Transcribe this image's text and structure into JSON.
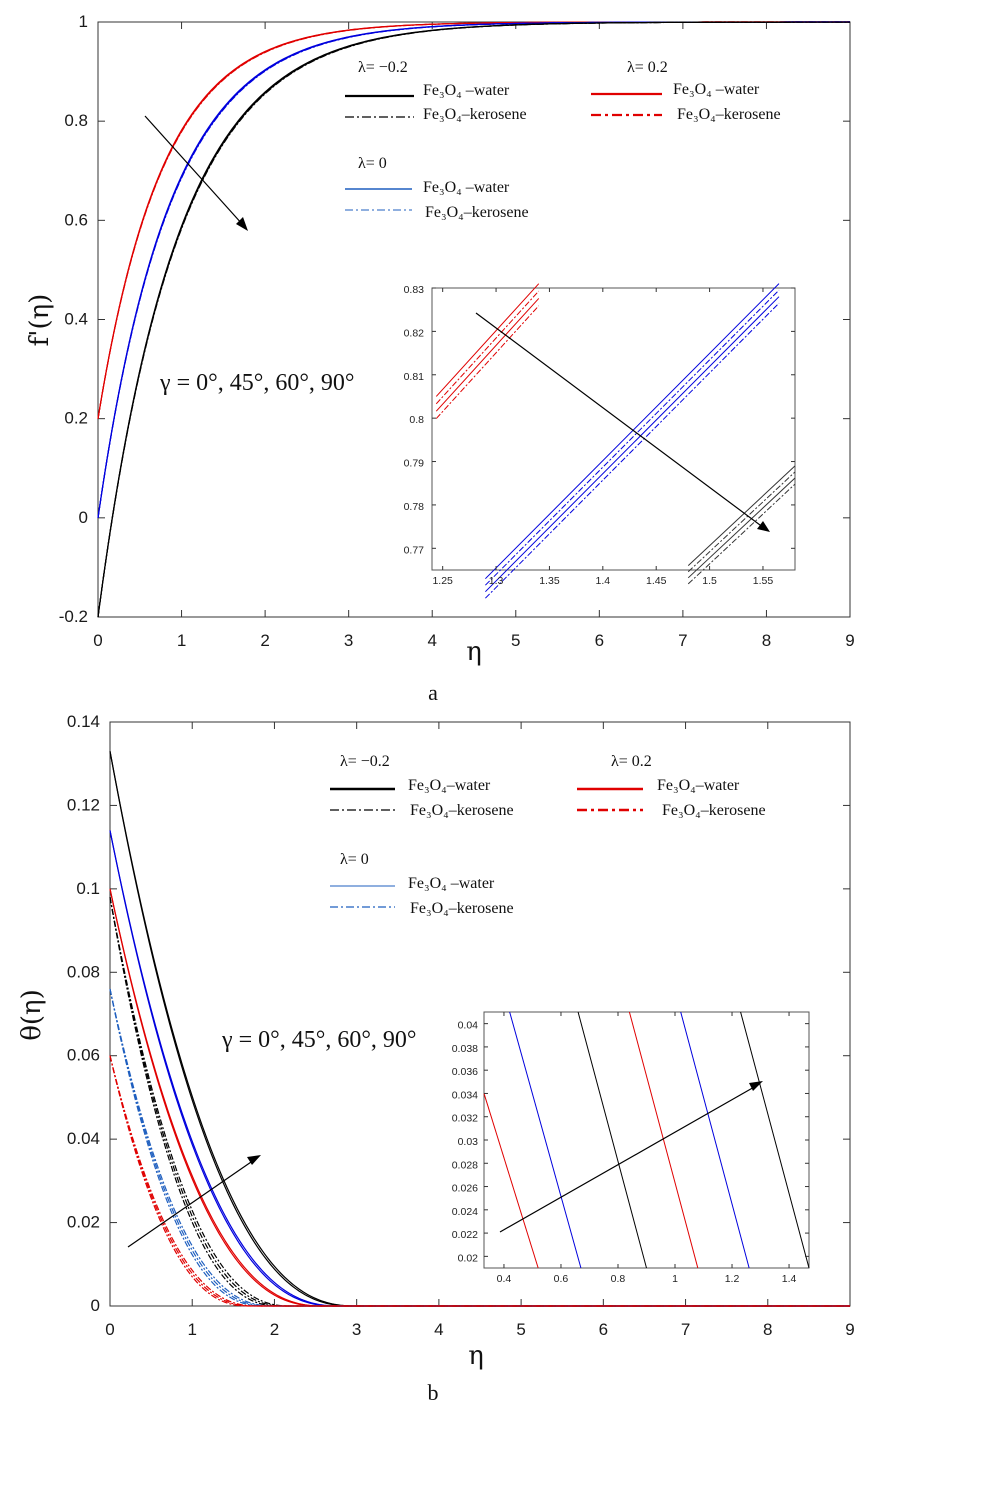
{
  "chart_data": [
    {
      "type": "line",
      "panel_label": "a",
      "xlabel": "η",
      "ylabel": "f'(η)",
      "xlim": [
        0,
        9
      ],
      "ylim": [
        -0.2,
        1
      ],
      "xticks": [
        "0",
        "1",
        "2",
        "3",
        "4",
        "5",
        "6",
        "7",
        "8",
        "9"
      ],
      "yticks": [
        "-0.2",
        "0",
        "0.2",
        "0.4",
        "0.6",
        "0.8",
        "1"
      ],
      "annotation": "γ = 0°, 45°, 60°, 90°",
      "legend": [
        {
          "heading": "λ= −0.2",
          "entries": [
            {
              "label": "Fe₃O₄ –water",
              "color": "#000000",
              "style": "solid"
            },
            {
              "label": "Fe₃O₄–kerosene",
              "color": "#000000",
              "style": "dashdot"
            }
          ]
        },
        {
          "heading": "λ= 0.2",
          "entries": [
            {
              "label": "Fe₃O₄ –water",
              "color": "#e00000",
              "style": "solid"
            },
            {
              "label": "Fe₃O₄–kerosene",
              "color": "#e00000",
              "style": "dashdot"
            }
          ]
        },
        {
          "heading": "λ= 0",
          "entries": [
            {
              "label": "Fe₃O₄ –water",
              "color": "#1f5fbf",
              "style": "solid"
            },
            {
              "label": "Fe₃O₄–kerosene",
              "color": "#1f5fbf",
              "style": "dashdot"
            }
          ]
        }
      ],
      "series": [
        {
          "group": "λ=0.2",
          "color": "#e00000",
          "start": 0.2,
          "rate": 1.3,
          "curves": 4
        },
        {
          "group": "λ=0",
          "color": "#0000dd",
          "start": 0.0,
          "rate": 1.17,
          "curves": 4
        },
        {
          "group": "λ=-0.2",
          "color": "#000000",
          "start": -0.2,
          "rate": 1.07,
          "curves": 4
        }
      ],
      "inset": {
        "xlim": [
          1.24,
          1.58
        ],
        "ylim": [
          0.765,
          0.83
        ],
        "xticks": [
          "1.25",
          "1.3",
          "1.35",
          "1.4",
          "1.45",
          "1.5",
          "1.55"
        ],
        "yticks": [
          "0.77",
          "0.78",
          "0.79",
          "0.8",
          "0.81",
          "0.82",
          "0.83"
        ]
      }
    },
    {
      "type": "line",
      "panel_label": "b",
      "xlabel": "η",
      "ylabel": "θ(η)",
      "xlim": [
        0,
        9
      ],
      "ylim": [
        0,
        0.14
      ],
      "xticks": [
        "0",
        "1",
        "2",
        "3",
        "4",
        "5",
        "6",
        "7",
        "8",
        "9"
      ],
      "yticks": [
        "0",
        "0.02",
        "0.04",
        "0.06",
        "0.08",
        "0.1",
        "0.12",
        "0.14"
      ],
      "annotation": "γ = 0°, 45°, 60°, 90°",
      "legend": [
        {
          "heading": "λ= −0.2",
          "entries": [
            {
              "label": "Fe₃O₄–water",
              "color": "#000000",
              "style": "solid"
            },
            {
              "label": "Fe₃O₄–kerosene",
              "color": "#000000",
              "style": "dashdot"
            }
          ]
        },
        {
          "heading": "λ= 0.2",
          "entries": [
            {
              "label": "Fe₃O₄–water",
              "color": "#e00000",
              "style": "solid"
            },
            {
              "label": "Fe₃O₄–kerosene",
              "color": "#e00000",
              "style": "dashdot"
            }
          ]
        },
        {
          "heading": "λ= 0",
          "entries": [
            {
              "label": "Fe₃O₄ –water",
              "color": "#1f5fbf",
              "style": "solid"
            },
            {
              "label": "Fe₃O₄–kerosene",
              "color": "#1f5fbf",
              "style": "dashdot"
            }
          ]
        }
      ],
      "series": [
        {
          "group": "λ=-0.2 water",
          "color": "#000000",
          "style": "solid",
          "start": 0.133,
          "end": 3.0
        },
        {
          "group": "λ=0 water",
          "color": "#0000dd",
          "style": "solid",
          "start": 0.114,
          "end": 2.8
        },
        {
          "group": "λ=0.2 water",
          "color": "#e00000",
          "style": "solid",
          "start": 0.1,
          "end": 2.6
        },
        {
          "group": "λ=-0.2 kerosene",
          "color": "#000000",
          "style": "dashdot",
          "start": 0.098,
          "end": 2.2
        },
        {
          "group": "λ=0 kerosene",
          "color": "#1f5fbf",
          "style": "dashdot",
          "start": 0.076,
          "end": 2.0
        },
        {
          "group": "λ=0.2 kerosene",
          "color": "#e00000",
          "style": "dashdot",
          "start": 0.06,
          "end": 1.8
        }
      ],
      "inset": {
        "xlim": [
          0.33,
          1.47
        ],
        "ylim": [
          0.019,
          0.041
        ],
        "xticks": [
          "0.4",
          "0.6",
          "0.8",
          "1",
          "1.2",
          "1.4"
        ],
        "yticks": [
          "0.02",
          "0.022",
          "0.024",
          "0.026",
          "0.028",
          "0.03",
          "0.032",
          "0.034",
          "0.036",
          "0.038",
          "0.04"
        ]
      }
    }
  ]
}
